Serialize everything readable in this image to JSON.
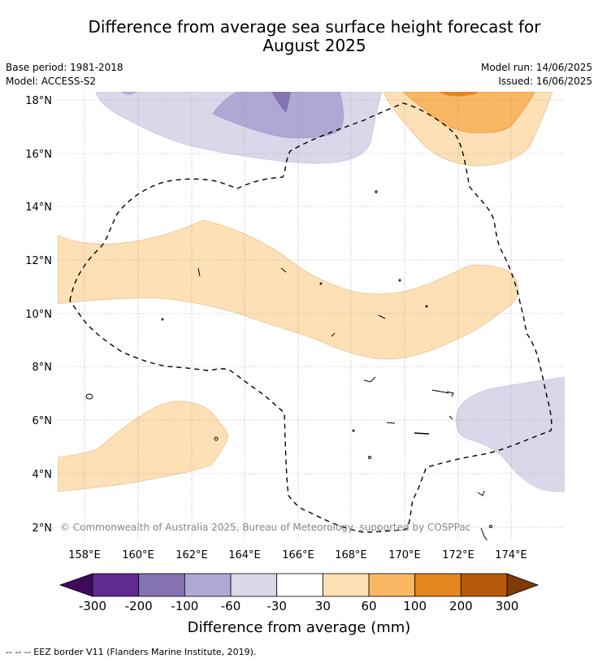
{
  "title_line1": "Difference from average sea surface height forecast for",
  "title_line2": "August 2025",
  "base_period": "Base period: 1981-2018",
  "model": "Model: ACCESS-S2",
  "model_run": "Model run: 14/06/2025",
  "issued": "Issued: 16/06/2025",
  "copyright": "© Commonwealth of Australia 2025, Bureau of Meteorology, supported by COSPPac",
  "lat_labels": [
    "18°N",
    "16°N",
    "14°N",
    "12°N",
    "10°N",
    "8°N",
    "6°N",
    "4°N",
    "2°N"
  ],
  "lon_labels": [
    "158°E",
    "160°E",
    "162°E",
    "164°E",
    "166°E",
    "168°E",
    "170°E",
    "172°E",
    "174°E"
  ],
  "colorbar": {
    "label": "Difference from average (mm)",
    "ticks": [
      "-300",
      "-200",
      "-100",
      "-60",
      "-30",
      "30",
      "60",
      "100",
      "200",
      "300"
    ],
    "colors": [
      "#3f0a5c",
      "#5f2a91",
      "#8472b2",
      "#b0a8d4",
      "#d8d8ea",
      "#ffffff",
      "#fde0b6",
      "#f9b663",
      "#e4861e",
      "#b55a0a",
      "#7f3a08"
    ]
  },
  "footer": "-- -- -- EEZ border V11 (Flanders Marine Institute, 2019)."
}
